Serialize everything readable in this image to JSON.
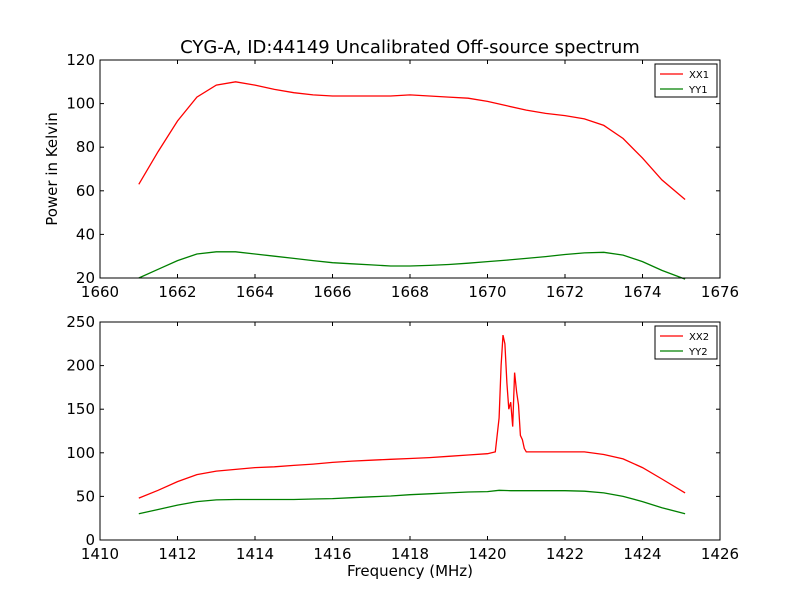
{
  "title": "CYG-A, ID:44149 Uncalibrated Off-source spectrum",
  "chart_data": [
    {
      "type": "line",
      "xlabel": "",
      "ylabel": "Power in Kelvin",
      "xlim": [
        1660,
        1676
      ],
      "ylim": [
        20,
        120
      ],
      "xticks": [
        1660,
        1662,
        1664,
        1666,
        1668,
        1670,
        1672,
        1674,
        1676
      ],
      "yticks": [
        20,
        40,
        60,
        80,
        100,
        120
      ],
      "legend_placement": "top-right",
      "series": [
        {
          "name": "XX1",
          "color": "#ff0000",
          "x": [
            1661.0,
            1661.5,
            1662.0,
            1662.5,
            1663.0,
            1663.5,
            1664.0,
            1664.5,
            1665.0,
            1665.5,
            1666.0,
            1666.5,
            1667.0,
            1667.5,
            1668.0,
            1668.5,
            1669.0,
            1669.5,
            1670.0,
            1670.5,
            1671.0,
            1671.5,
            1672.0,
            1672.5,
            1673.0,
            1673.5,
            1674.0,
            1674.5,
            1675.1
          ],
          "y": [
            63,
            78,
            92,
            103,
            108.5,
            110,
            108.5,
            106.5,
            105,
            104,
            103.5,
            103.5,
            103.5,
            103.5,
            104,
            103.5,
            103,
            102.5,
            101,
            99,
            97,
            95.5,
            94.5,
            93,
            90,
            84,
            75,
            65,
            56
          ]
        },
        {
          "name": "YY1",
          "color": "#008000",
          "x": [
            1661.0,
            1661.5,
            1662.0,
            1662.5,
            1663.0,
            1663.5,
            1664.0,
            1664.5,
            1665.0,
            1665.5,
            1666.0,
            1666.5,
            1667.0,
            1667.5,
            1668.0,
            1668.5,
            1669.0,
            1669.5,
            1670.0,
            1670.5,
            1671.0,
            1671.5,
            1672.0,
            1672.5,
            1673.0,
            1673.5,
            1674.0,
            1674.5,
            1675.1
          ],
          "y": [
            20,
            24,
            28,
            31,
            32,
            32,
            31,
            30,
            29,
            28,
            27,
            26.5,
            26,
            25.5,
            25.5,
            25.8,
            26.2,
            26.8,
            27.5,
            28.2,
            29,
            29.8,
            30.8,
            31.5,
            31.8,
            30.5,
            27.5,
            23.5,
            19.5
          ]
        }
      ]
    },
    {
      "type": "line",
      "xlabel": "Frequency (MHz)",
      "ylabel": "",
      "xlim": [
        1410,
        1426
      ],
      "ylim": [
        0,
        250
      ],
      "xticks": [
        1410,
        1412,
        1414,
        1416,
        1418,
        1420,
        1422,
        1424,
        1426
      ],
      "yticks": [
        0,
        50,
        100,
        150,
        200,
        250
      ],
      "legend_placement": "top-right",
      "series": [
        {
          "name": "XX2",
          "color": "#ff0000",
          "x": [
            1411.0,
            1411.5,
            1412.0,
            1412.5,
            1413.0,
            1413.5,
            1414.0,
            1414.5,
            1415.0,
            1415.5,
            1416.0,
            1416.5,
            1417.0,
            1417.5,
            1418.0,
            1418.5,
            1419.0,
            1419.5,
            1420.0,
            1420.2,
            1420.3,
            1420.35,
            1420.4,
            1420.45,
            1420.5,
            1420.55,
            1420.6,
            1420.65,
            1420.7,
            1420.75,
            1420.8,
            1420.85,
            1420.9,
            1420.95,
            1421.0,
            1421.1,
            1421.5,
            1422.0,
            1422.5,
            1423.0,
            1423.5,
            1424.0,
            1424.5,
            1425.1
          ],
          "y": [
            48,
            57,
            67,
            75,
            79,
            81,
            83,
            84,
            85.5,
            87,
            89,
            90.5,
            91.5,
            92.5,
            93.5,
            94.5,
            96,
            97.5,
            99,
            101,
            140,
            200,
            235,
            225,
            180,
            150,
            158,
            130,
            192,
            170,
            155,
            120,
            115,
            105,
            101,
            101,
            101,
            101,
            101,
            98,
            93,
            83,
            70,
            54
          ]
        },
        {
          "name": "YY2",
          "color": "#008000",
          "x": [
            1411.0,
            1411.5,
            1412.0,
            1412.5,
            1413.0,
            1413.5,
            1414.0,
            1414.5,
            1415.0,
            1415.5,
            1416.0,
            1416.5,
            1417.0,
            1417.5,
            1418.0,
            1418.5,
            1419.0,
            1419.5,
            1420.0,
            1420.3,
            1420.6,
            1421.0,
            1421.5,
            1422.0,
            1422.5,
            1423.0,
            1423.5,
            1424.0,
            1424.5,
            1425.1
          ],
          "y": [
            30,
            35,
            40,
            44,
            46,
            46.5,
            46.5,
            46.5,
            46.5,
            47,
            47.5,
            48.5,
            49.5,
            50.5,
            52,
            53,
            54,
            55,
            55.5,
            57,
            56.5,
            56.5,
            56.5,
            56.5,
            56,
            54,
            50,
            44,
            37,
            30
          ]
        }
      ]
    }
  ]
}
